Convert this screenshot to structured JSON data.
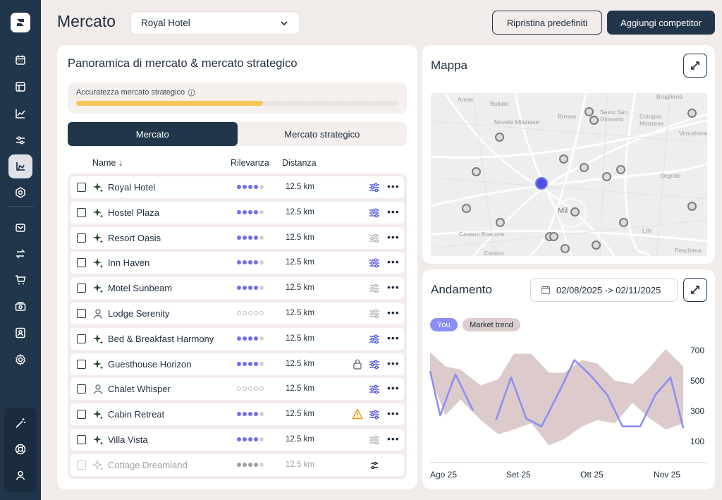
{
  "header": {
    "title": "Mercato",
    "hotel_select": "Royal Hotel",
    "reset_label": "Ripristina predefiniti",
    "add_label": "Aggiungi competitor"
  },
  "sidebar": {
    "items": [
      "calendar-icon",
      "layout-icon",
      "chart-line-icon",
      "sliders-icon",
      "market-icon",
      "settings-hex-icon",
      "inbox-icon",
      "transfer-icon",
      "cart-icon",
      "money-icon",
      "contact-icon",
      "gear-icon"
    ],
    "bottom": [
      "magic-wand-icon",
      "lifebuoy-icon",
      "user-icon"
    ],
    "active_index": 4
  },
  "overview": {
    "title": "Panoramica di mercato & mercato strategico",
    "accuracy_label": "Accuratezza mercato strategico",
    "accuracy_value": 0.58,
    "tabs": [
      "Mercato",
      "Mercato strategico"
    ],
    "active_tab": 0,
    "columns": {
      "name": "Name ↓",
      "relevance": "Rilevanza",
      "distance": "Distanza"
    },
    "rows": [
      {
        "name": "Royal Hotel",
        "kind": "ai",
        "relevance": 4,
        "distance": "12.5 km",
        "adjust_active": true,
        "flag": ""
      },
      {
        "name": "Hostel Plaza",
        "kind": "ai",
        "relevance": 4,
        "distance": "12.5 km",
        "adjust_active": true,
        "flag": ""
      },
      {
        "name": "Resort Oasis",
        "kind": "ai",
        "relevance": 4,
        "distance": "12.5 km",
        "adjust_active": false,
        "flag": ""
      },
      {
        "name": "Inn Haven",
        "kind": "ai",
        "relevance": 4,
        "distance": "12.5 km",
        "adjust_active": true,
        "flag": ""
      },
      {
        "name": "Motel Sunbeam",
        "kind": "ai",
        "relevance": 4,
        "distance": "12.5 km",
        "adjust_active": false,
        "flag": ""
      },
      {
        "name": "Lodge Serenity",
        "kind": "user",
        "relevance": 0,
        "distance": "12.5 km",
        "adjust_active": false,
        "flag": ""
      },
      {
        "name": "Bed & Breakfast Harmony",
        "kind": "ai",
        "relevance": 4,
        "distance": "12.5 km",
        "adjust_active": true,
        "flag": ""
      },
      {
        "name": "Guesthouse Horizon",
        "kind": "ai",
        "relevance": 4,
        "distance": "12.5 km",
        "adjust_active": true,
        "flag": "lock"
      },
      {
        "name": "Chalet Whisper",
        "kind": "user",
        "relevance": 0,
        "distance": "12.5 km",
        "adjust_active": true,
        "flag": ""
      },
      {
        "name": "Cabin Retreat",
        "kind": "ai",
        "relevance": 4,
        "distance": "12.5 km",
        "adjust_active": true,
        "flag": "warning"
      },
      {
        "name": "Villa Vista",
        "kind": "ai",
        "relevance": 4,
        "distance": "12.5 km",
        "adjust_active": false,
        "flag": ""
      },
      {
        "name": "Cottage Dreamland",
        "kind": "ai",
        "relevance": 4,
        "distance": "12.5 km",
        "adjust_active": false,
        "flag": "",
        "disabled": true
      }
    ]
  },
  "map": {
    "title": "Mappa",
    "labels": [
      {
        "text": "Arese"
      },
      {
        "text": "Bollate"
      },
      {
        "text": "Bresso"
      },
      {
        "text": "Sesto San\nGiovanni"
      },
      {
        "text": "Cologno\nMonzese"
      },
      {
        "text": "Brugherio"
      },
      {
        "text": "Vimodrone"
      },
      {
        "text": "Novate Milanese"
      },
      {
        "text": "Segrate"
      },
      {
        "text": "Mil"
      },
      {
        "text": "Cesano Boscone"
      },
      {
        "text": "Corsico"
      },
      {
        "text": "Peschiera"
      },
      {
        "text": "LIN"
      }
    ]
  },
  "trend": {
    "title": "Andamento",
    "date_range": "02/08/2025 -> 02/11/2025",
    "legend": [
      "You",
      "Market trend"
    ],
    "chart_data": {
      "type": "line",
      "x_labels": [
        "Ago 25",
        "Set 25",
        "Ott 25",
        "Nov 25"
      ],
      "y_ticks": [
        700,
        500,
        300,
        100
      ],
      "ylim": [
        0,
        750
      ],
      "series": [
        {
          "name": "You",
          "color": "#8d8ef4",
          "segments": [
            [
              [
                0,
                530
              ],
              [
                0.04,
                250
              ],
              [
                0.1,
                510
              ],
              [
                0.17,
                280
              ]
            ],
            [
              [
                0.26,
                220
              ],
              [
                0.32,
                490
              ],
              [
                0.38,
                230
              ],
              [
                0.44,
                180
              ],
              [
                0.51,
                400
              ],
              [
                0.57,
                600
              ],
              [
                0.63,
                510
              ],
              [
                0.7,
                380
              ],
              [
                0.76,
                180
              ],
              [
                0.83,
                180
              ],
              [
                0.89,
                380
              ],
              [
                0.95,
                490
              ],
              [
                1,
                170
              ]
            ]
          ]
        },
        {
          "name": "Market trend",
          "color": "#d9c5c5",
          "band_upper": [
            [
              0,
              650
            ],
            [
              0.06,
              560
            ],
            [
              0.12,
              540
            ],
            [
              0.2,
              440
            ],
            [
              0.27,
              480
            ],
            [
              0.33,
              640
            ],
            [
              0.4,
              640
            ],
            [
              0.47,
              520
            ],
            [
              0.53,
              520
            ],
            [
              0.6,
              600
            ],
            [
              0.66,
              580
            ],
            [
              0.73,
              470
            ],
            [
              0.8,
              450
            ],
            [
              0.86,
              540
            ],
            [
              0.93,
              670
            ],
            [
              1,
              560
            ]
          ],
          "band_lower": [
            [
              0,
              500
            ],
            [
              0.06,
              250
            ],
            [
              0.12,
              350
            ],
            [
              0.2,
              220
            ],
            [
              0.27,
              130
            ],
            [
              0.33,
              160
            ],
            [
              0.4,
              200
            ],
            [
              0.47,
              60
            ],
            [
              0.53,
              100
            ],
            [
              0.6,
              180
            ],
            [
              0.66,
              220
            ],
            [
              0.73,
              200
            ],
            [
              0.8,
              330
            ],
            [
              0.86,
              240
            ],
            [
              0.93,
              160
            ],
            [
              1,
              200
            ]
          ]
        }
      ]
    }
  }
}
